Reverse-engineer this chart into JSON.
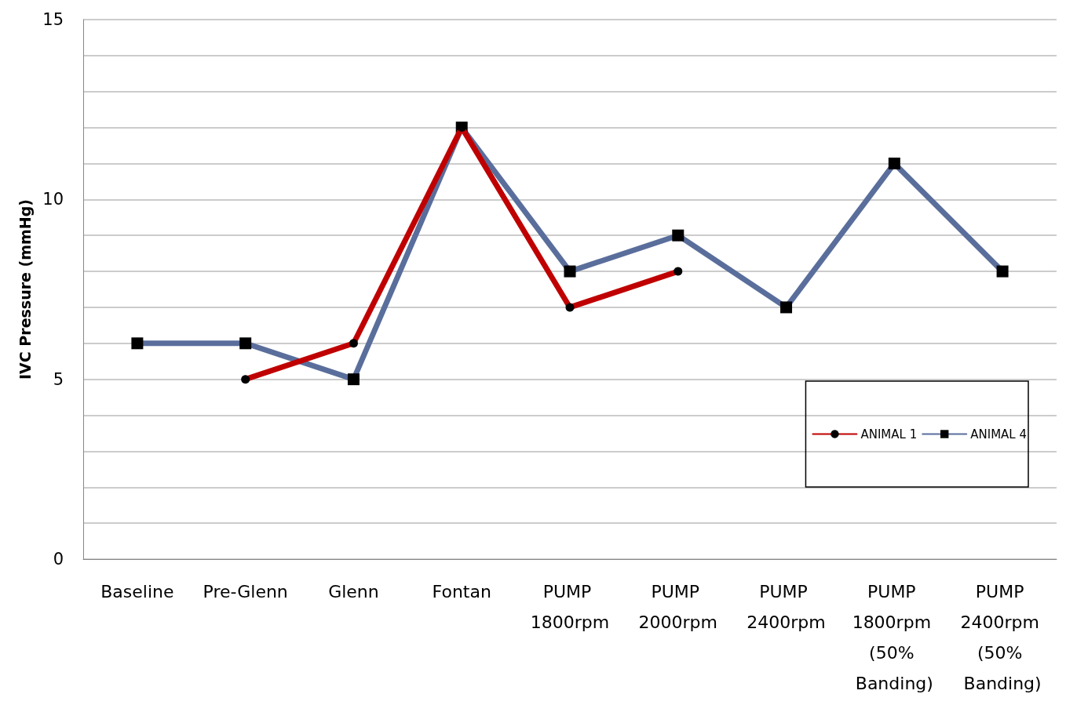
{
  "chart_data": {
    "type": "line",
    "ylabel": "IVC Pressure (mmHg)",
    "categories": [
      "Baseline",
      "Pre-Glenn",
      "Glenn",
      "Fontan",
      "PUMP 1800rpm",
      "PUMP 2000rpm",
      "PUMP 2400rpm",
      "PUMP 1800rpm (50% Banding)",
      "PUMP 2400rpm (50% Banding)"
    ],
    "series": [
      {
        "name": "ANIMAL 1",
        "color": "#c00000",
        "marker": "circle",
        "values": [
          null,
          5,
          6,
          12,
          7,
          8,
          null,
          null,
          null
        ]
      },
      {
        "name": "ANIMAL 4",
        "color": "#5a6e9c",
        "marker": "square",
        "values": [
          6,
          6,
          5,
          12,
          8,
          9,
          7,
          11,
          8
        ]
      }
    ],
    "ylim": [
      0,
      15
    ],
    "yticks": [
      0,
      {
        "value": 1,
        "label": null
      },
      {
        "value": 2,
        "label": null
      },
      {
        "value": 3,
        "label": null
      },
      {
        "value": 4,
        "label": null
      },
      5,
      {
        "value": 6,
        "label": null
      },
      {
        "value": 7,
        "label": null
      },
      {
        "value": 8,
        "label": null
      },
      {
        "value": 9,
        "label": null
      },
      10,
      {
        "value": 11,
        "label": null
      },
      {
        "value": 12,
        "label": null
      },
      {
        "value": 13,
        "label": null
      },
      {
        "value": 14,
        "label": null
      },
      15
    ],
    "grid": "y",
    "legend": "bottom right"
  }
}
